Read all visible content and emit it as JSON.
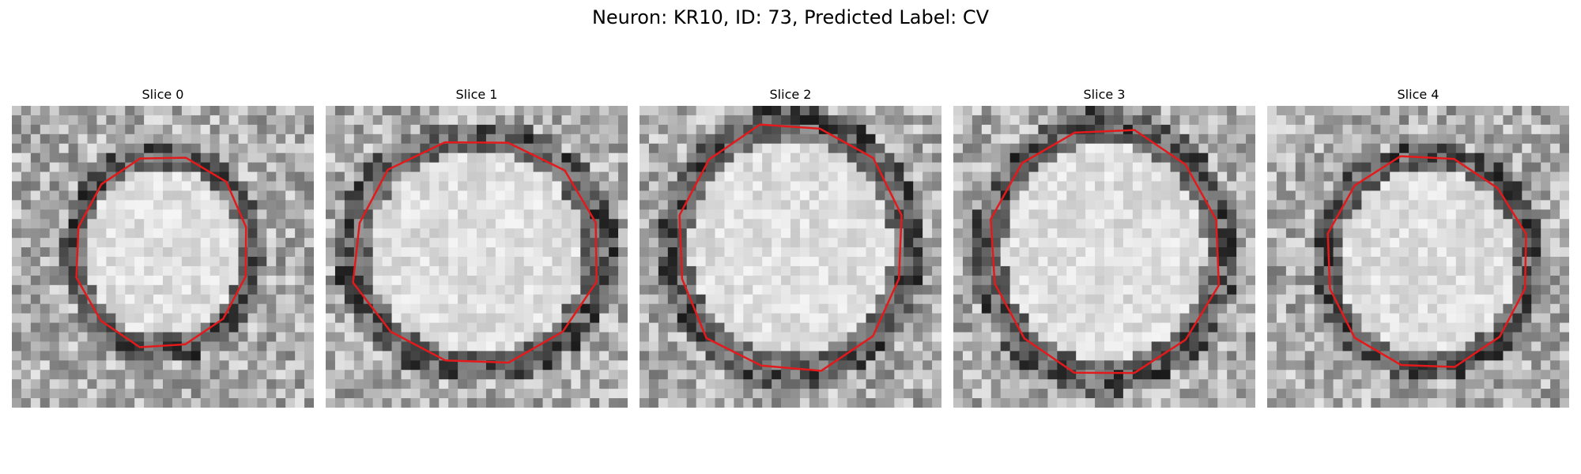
{
  "figure": {
    "title": "Neuron: KR10, ID: 73, Predicted Label: CV"
  },
  "panels": [
    {
      "title": "Slice 0"
    },
    {
      "title": "Slice 1"
    },
    {
      "title": "Slice 2"
    },
    {
      "title": "Slice 3"
    },
    {
      "title": "Slice 4"
    }
  ],
  "contour_color": "#e31a1c"
}
